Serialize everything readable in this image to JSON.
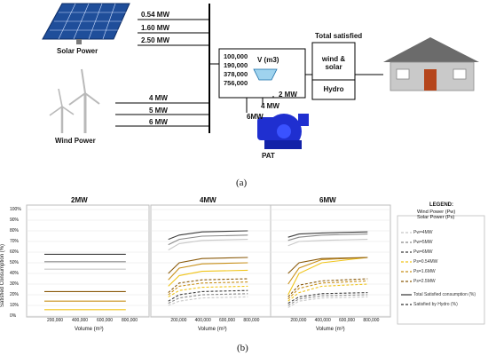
{
  "part_a": {
    "label": "(a)",
    "solar": {
      "label": "Solar Power",
      "capacities": [
        "0.54 MW",
        "1.60 MW",
        "2.50 MW"
      ]
    },
    "wind": {
      "label": "Wind Power",
      "capacities": [
        "4 MW",
        "5 MW",
        "6 MW"
      ]
    },
    "reservoir": {
      "volumes": [
        "100,000",
        "190,000",
        "378,000",
        "756,000"
      ],
      "unit": "V (m3)"
    },
    "pat": {
      "label": "PAT",
      "flows": [
        "2 MW",
        "4 MW",
        "6MW"
      ]
    },
    "satisfied": {
      "title": "Total satisfied",
      "top": "wind &\nsolar",
      "bottom": "Hydro"
    },
    "colors": {
      "solar_panel": "#1f4e9a",
      "pump": "#1f2fd0",
      "house_wall": "#c9c9c9",
      "roof": "#6b6b6b",
      "door": "#b5451b"
    }
  },
  "part_b": {
    "label": "(b)",
    "panel_titles": [
      "2MW",
      "4MW",
      "6MW"
    ],
    "y_axis_label": "Satisfied Consumption (%)",
    "x_axis_label": "Volume (m³)",
    "y_ticks": [
      "0%",
      "10%",
      "20%",
      "30%",
      "40%",
      "50%",
      "60%",
      "70%",
      "80%",
      "90%",
      "100%"
    ],
    "x_ticks": [
      "200,000",
      "400,000",
      "600,000",
      "800,000"
    ],
    "legend": {
      "title": "LEGEND:",
      "line1": "Wind Power (Pw)",
      "line2": "Solar Power (Ps)",
      "entries": [
        {
          "label": "Pw=4MW",
          "color": "#c8c8c8",
          "dash": "3,2"
        },
        {
          "label": "Pw=5MW",
          "color": "#8a8a8a",
          "dash": "3,2"
        },
        {
          "label": "Pw=6MW",
          "color": "#3c3c3c",
          "dash": "3,2"
        },
        {
          "label": "Ps=0.54MW",
          "color": "#f0c419",
          "dash": "3,2"
        },
        {
          "label": "Ps=1.6MW",
          "color": "#c8901a",
          "dash": "3,2"
        },
        {
          "label": "Ps=2.5MW",
          "color": "#8a5a0a",
          "dash": "3,2"
        },
        {
          "label": "Total Satisfied consumption (%)",
          "color": "#333333",
          "dash": ""
        },
        {
          "label": "Satisfied by Hydro (%)",
          "color": "#333333",
          "dash": "3,2"
        }
      ]
    }
  },
  "chart_data": [
    {
      "type": "line",
      "title": "2MW",
      "ylabel": "Satisfied Consumption (%)",
      "xlabel": "Volume (m³)",
      "x": [
        100000,
        190000,
        378000,
        756000
      ],
      "ylim": [
        0,
        100
      ],
      "series": [
        {
          "color": "#c8c8c8",
          "dash": "",
          "values": [
            44,
            44,
            44,
            44
          ]
        },
        {
          "color": "#8a8a8a",
          "dash": "",
          "values": [
            51,
            51,
            51,
            51
          ]
        },
        {
          "color": "#3c3c3c",
          "dash": "",
          "values": [
            58,
            58,
            58,
            58
          ]
        },
        {
          "color": "#f0c419",
          "dash": "",
          "values": [
            6,
            6,
            6,
            6
          ]
        },
        {
          "color": "#c8901a",
          "dash": "",
          "values": [
            14,
            14,
            14,
            14
          ]
        },
        {
          "color": "#8a5a0a",
          "dash": "",
          "values": [
            23,
            23,
            23,
            23
          ]
        }
      ]
    },
    {
      "type": "line",
      "title": "4MW",
      "x": [
        100000,
        190000,
        378000,
        756000
      ],
      "ylim": [
        0,
        100
      ],
      "series": [
        {
          "color": "#c8c8c8",
          "dash": "",
          "values": [
            62,
            68,
            71,
            72
          ]
        },
        {
          "color": "#8a8a8a",
          "dash": "",
          "values": [
            67,
            72,
            75,
            76
          ]
        },
        {
          "color": "#3c3c3c",
          "dash": "",
          "values": [
            72,
            76,
            79,
            80
          ]
        },
        {
          "color": "#f0c419",
          "dash": "",
          "values": [
            28,
            38,
            42,
            43
          ]
        },
        {
          "color": "#c8901a",
          "dash": "",
          "values": [
            34,
            45,
            49,
            50
          ]
        },
        {
          "color": "#8a5a0a",
          "dash": "",
          "values": [
            40,
            50,
            54,
            55
          ]
        },
        {
          "color": "#c8c8c8",
          "dash": "3,2",
          "values": [
            10,
            14,
            17,
            18
          ]
        },
        {
          "color": "#8a8a8a",
          "dash": "3,2",
          "values": [
            12,
            17,
            20,
            21
          ]
        },
        {
          "color": "#3c3c3c",
          "dash": "3,2",
          "values": [
            14,
            20,
            23,
            24
          ]
        },
        {
          "color": "#f0c419",
          "dash": "3,2",
          "values": [
            18,
            24,
            27,
            28
          ]
        },
        {
          "color": "#c8901a",
          "dash": "3,2",
          "values": [
            20,
            28,
            31,
            32
          ]
        },
        {
          "color": "#8a5a0a",
          "dash": "3,2",
          "values": [
            22,
            31,
            34,
            35
          ]
        }
      ]
    },
    {
      "type": "line",
      "title": "6MW",
      "x": [
        100000,
        190000,
        378000,
        756000
      ],
      "ylim": [
        0,
        100
      ],
      "series": [
        {
          "color": "#c8c8c8",
          "dash": "",
          "values": [
            66,
            70,
            71,
            72
          ]
        },
        {
          "color": "#8a8a8a",
          "dash": "",
          "values": [
            71,
            74,
            76,
            77
          ]
        },
        {
          "color": "#3c3c3c",
          "dash": "",
          "values": [
            74,
            77,
            78,
            79
          ]
        },
        {
          "color": "#f0c419",
          "dash": "",
          "values": [
            20,
            40,
            50,
            55
          ]
        },
        {
          "color": "#c8901a",
          "dash": "",
          "values": [
            30,
            45,
            53,
            55
          ]
        },
        {
          "color": "#8a5a0a",
          "dash": "",
          "values": [
            40,
            50,
            54,
            55
          ]
        },
        {
          "color": "#c8c8c8",
          "dash": "3,2",
          "values": [
            8,
            14,
            17,
            18
          ]
        },
        {
          "color": "#8a8a8a",
          "dash": "3,2",
          "values": [
            10,
            16,
            19,
            20
          ]
        },
        {
          "color": "#3c3c3c",
          "dash": "3,2",
          "values": [
            12,
            18,
            21,
            22
          ]
        },
        {
          "color": "#f0c419",
          "dash": "3,2",
          "values": [
            14,
            22,
            28,
            30
          ]
        },
        {
          "color": "#c8901a",
          "dash": "3,2",
          "values": [
            16,
            26,
            31,
            33
          ]
        },
        {
          "color": "#8a5a0a",
          "dash": "3,2",
          "values": [
            18,
            29,
            33,
            35
          ]
        }
      ]
    }
  ]
}
